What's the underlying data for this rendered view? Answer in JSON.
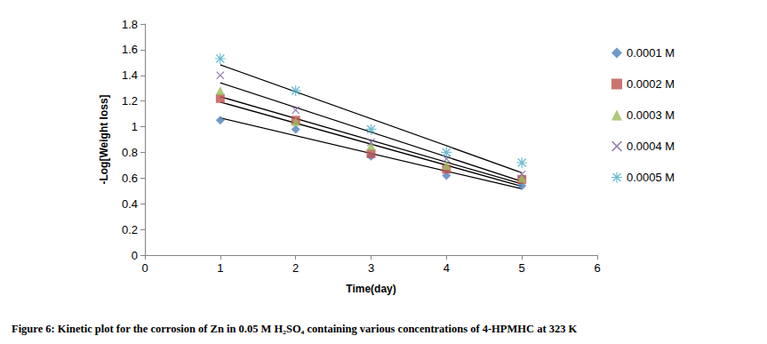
{
  "chart_data": {
    "type": "scatter",
    "title": "Figure 6: Kinetic plot for the corrosion of Zn in 0.05 M H₂SO₄ containing various concentrations of 4-HPMHC at 323 K",
    "x_label": "Time(day)",
    "y_label": "-Log[Weight loss]",
    "x": [
      1,
      2,
      3,
      4,
      5
    ],
    "series": [
      {
        "name": "0.0001 M",
        "color": "#4f81bd",
        "marker": "diamond",
        "line_style": "fit",
        "values": [
          1.05,
          0.98,
          0.77,
          0.62,
          0.54
        ]
      },
      {
        "name": "0.0002 M",
        "color": "#c0504d",
        "marker": "square",
        "line_style": "fit",
        "values": [
          1.22,
          1.05,
          0.79,
          0.67,
          0.59
        ]
      },
      {
        "name": "0.0003 M",
        "color": "#9bbb59",
        "marker": "triangle",
        "line_style": "fit",
        "values": [
          1.28,
          1.04,
          0.85,
          0.7,
          0.6
        ]
      },
      {
        "name": "0.0004 M",
        "color": "#8064a2",
        "marker": "x",
        "line_style": "fit",
        "values": [
          1.4,
          1.13,
          0.88,
          0.75,
          0.63
        ]
      },
      {
        "name": "0.0005 M",
        "color": "#4bacc6",
        "marker": "star",
        "line_style": "fit",
        "values": [
          1.53,
          1.28,
          0.98,
          0.8,
          0.72
        ]
      }
    ],
    "xlim": [
      0,
      6
    ],
    "xticks": [
      0,
      1,
      2,
      3,
      4,
      5,
      6
    ],
    "ylim": [
      0,
      1.8
    ],
    "yticks": [
      0,
      0.2,
      0.4,
      0.6,
      0.8,
      1,
      1.2,
      1.4,
      1.6,
      1.8
    ],
    "grid": false,
    "legend": "right"
  }
}
